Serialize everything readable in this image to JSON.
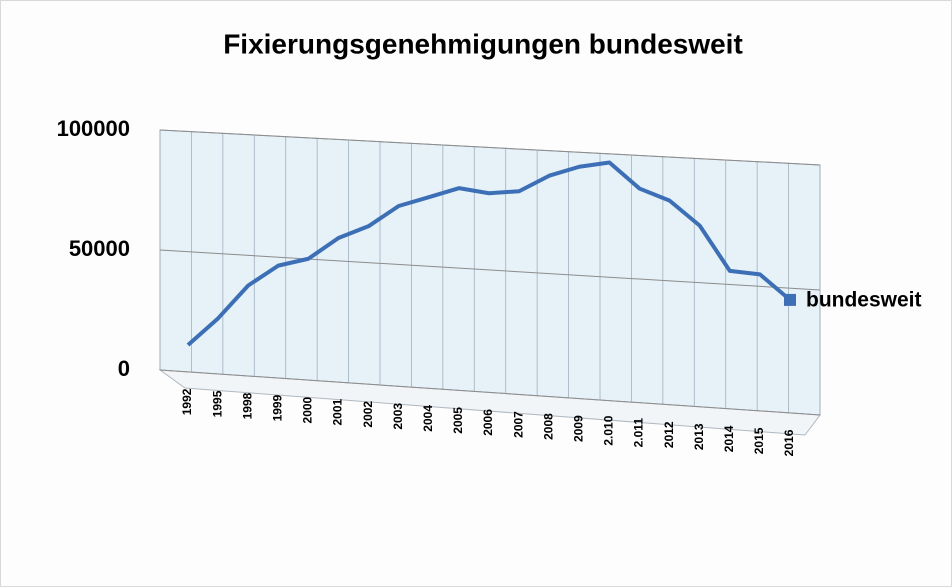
{
  "chart_data": {
    "type": "line",
    "title": "Fixierungsgenehmigungen bundesweit",
    "categories": [
      "1992",
      "1995",
      "1998",
      "1999",
      "2000",
      "2001",
      "2002",
      "2003",
      "2004",
      "2005",
      "2006",
      "2007",
      "2008",
      "2009",
      "2.010",
      "2.011",
      "2012",
      "2013",
      "2014",
      "2015",
      "2016"
    ],
    "series": [
      {
        "name": "bundesweit",
        "color": "#3d6fb6",
        "values": [
          11200,
          23100,
          37500,
          46500,
          50100,
          59400,
          65000,
          74000,
          78300,
          82700,
          81300,
          82800,
          89800,
          94100,
          96500,
          86600,
          82400,
          73000,
          55500,
          54800,
          45300
        ]
      }
    ],
    "ylim": [
      0,
      100000
    ],
    "yticks": [
      0,
      50000,
      100000
    ],
    "grid": true,
    "legend": "right"
  }
}
